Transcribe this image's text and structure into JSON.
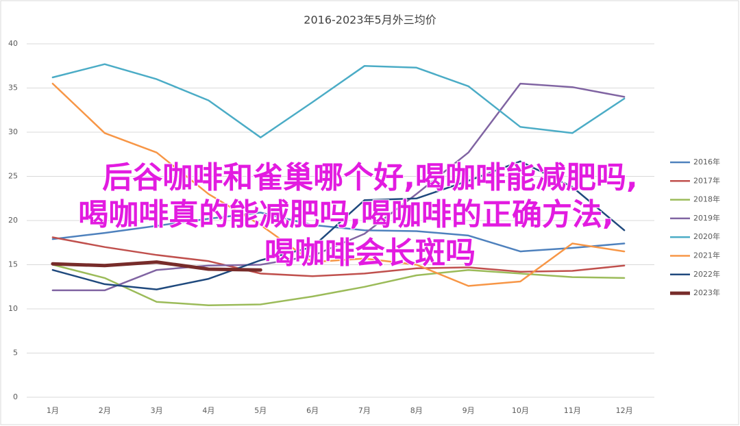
{
  "chart_data": {
    "type": "line",
    "title": "2016-2023年5月外三均价",
    "categories": [
      "1月",
      "2月",
      "3月",
      "4月",
      "5月",
      "6月",
      "7月",
      "8月",
      "9月",
      "10月",
      "11月",
      "12月"
    ],
    "ylim": [
      0,
      40
    ],
    "yticks": [
      0,
      5,
      10,
      15,
      20,
      25,
      30,
      35,
      40
    ],
    "grid": true,
    "legend": "right",
    "series": [
      {
        "name": "2016年",
        "color": "#4e81bd",
        "values": [
          17.9,
          18.6,
          19.4,
          20.2,
          20.9,
          19.5,
          18.9,
          18.8,
          18.3,
          16.5,
          16.9,
          17.4
        ]
      },
      {
        "name": "2017年",
        "color": "#c0504d",
        "values": [
          18.1,
          17.0,
          16.1,
          15.4,
          14.0,
          13.7,
          14.0,
          14.6,
          14.7,
          14.2,
          14.3,
          14.9
        ]
      },
      {
        "name": "2018年",
        "color": "#9bbb59",
        "values": [
          15.0,
          13.5,
          10.8,
          10.4,
          10.5,
          11.4,
          12.5,
          13.8,
          14.4,
          14.0,
          13.6,
          13.5
        ]
      },
      {
        "name": "2019年",
        "color": "#8064a2",
        "values": [
          12.1,
          12.1,
          14.4,
          14.9,
          15.0,
          16.0,
          18.5,
          23.0,
          27.7,
          35.5,
          35.1,
          34.0
        ]
      },
      {
        "name": "2020年",
        "color": "#4bacc6",
        "values": [
          36.2,
          37.7,
          36.0,
          33.6,
          29.4,
          33.4,
          37.5,
          37.3,
          35.2,
          30.6,
          29.9,
          33.8
        ]
      },
      {
        "name": "2021年",
        "color": "#f79646",
        "values": [
          35.5,
          29.9,
          27.7,
          23.0,
          19.5,
          15.3,
          15.7,
          15.0,
          12.6,
          13.1,
          17.4,
          16.5
        ]
      },
      {
        "name": "2022年",
        "color": "#1f497d",
        "values": [
          14.4,
          12.8,
          12.2,
          13.4,
          15.5,
          17.0,
          22.3,
          22.5,
          24.5,
          26.7,
          23.8,
          18.9
        ]
      },
      {
        "name": "2023年",
        "color": "#772c2a",
        "values": [
          15.1,
          14.9,
          15.3,
          14.5,
          14.4,
          null,
          null,
          null,
          null,
          null,
          null,
          null
        ]
      }
    ]
  },
  "overlay": {
    "lines": [
      "后谷咖啡和雀巢哪个好,喝咖啡能减肥吗,",
      "喝咖啡真的能减肥吗,喝咖啡的正确方法,",
      "喝咖啡会长斑吗"
    ],
    "color": "#e21be0"
  }
}
